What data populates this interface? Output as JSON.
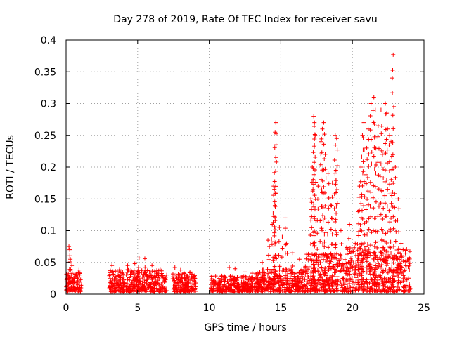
{
  "colors": {
    "marker": "#ff0000",
    "grid": "#a0a0a0",
    "axis": "#000000"
  },
  "chart_data": {
    "type": "scatter",
    "title": "Day 278 of 2019, Rate Of TEC Index for receiver savu",
    "xlabel": "GPS time / hours",
    "ylabel": "ROTI / TECUs",
    "xlim": [
      0,
      25
    ],
    "ylim": [
      0,
      0.4
    ],
    "grid": true,
    "marker": "+",
    "x_ticks": [
      0,
      5,
      10,
      15,
      20,
      25
    ],
    "x_tick_labels": [
      "0",
      "5",
      "10",
      "15",
      "20",
      "25"
    ],
    "y_ticks": [
      0,
      0.05,
      0.1,
      0.15,
      0.2,
      0.25,
      0.3,
      0.35,
      0.4
    ],
    "y_tick_labels": [
      "0",
      "0.05",
      "0.1",
      "0.15",
      "0.2",
      "0.25",
      "0.3",
      "0.35",
      "0.4"
    ],
    "segments": [
      {
        "x_range": [
          0.0,
          1.05
        ],
        "base_max": 0.03,
        "outliers": [
          [
            0.2,
            0.075
          ],
          [
            0.25,
            0.07
          ],
          [
            0.3,
            0.055
          ],
          [
            0.4,
            0.045
          ],
          [
            0.9,
            0.038
          ]
        ]
      },
      {
        "x_range": [
          3.0,
          7.05
        ],
        "base_max": 0.035,
        "outliers": [
          [
            3.2,
            0.045
          ],
          [
            4.3,
            0.045
          ],
          [
            5.1,
            0.057
          ],
          [
            5.5,
            0.056
          ],
          [
            6.0,
            0.045
          ],
          [
            4.8,
            0.048
          ]
        ]
      },
      {
        "x_range": [
          7.45,
          9.1
        ],
        "base_max": 0.03,
        "outliers": [
          [
            7.6,
            0.042
          ],
          [
            8.0,
            0.038
          ],
          [
            8.7,
            0.035
          ]
        ]
      },
      {
        "x_range": [
          10.1,
          13.2
        ],
        "base_max": 0.025,
        "outliers": [
          [
            11.4,
            0.042
          ],
          [
            11.8,
            0.04
          ],
          [
            12.5,
            0.035
          ],
          [
            13.0,
            0.033
          ]
        ]
      },
      {
        "x_range": [
          13.2,
          16.7
        ],
        "base_max": 0.035,
        "outliers": [
          [
            13.7,
            0.05
          ],
          [
            14.1,
            0.085
          ],
          [
            14.2,
            0.075
          ],
          [
            14.4,
            0.11
          ],
          [
            14.5,
            0.17
          ],
          [
            14.55,
            0.165
          ],
          [
            14.6,
            0.255
          ],
          [
            14.65,
            0.27
          ],
          [
            14.9,
            0.105
          ],
          [
            15.1,
            0.09
          ],
          [
            15.3,
            0.12
          ],
          [
            15.4,
            0.08
          ],
          [
            15.8,
            0.065
          ],
          [
            16.3,
            0.055
          ]
        ]
      },
      {
        "x_range": [
          16.7,
          19.5
        ],
        "base_max": 0.06,
        "outliers": [
          [
            17.1,
            0.15
          ],
          [
            17.2,
            0.2
          ],
          [
            17.3,
            0.28
          ],
          [
            17.35,
            0.27
          ],
          [
            17.4,
            0.25
          ],
          [
            17.6,
            0.17
          ],
          [
            17.8,
            0.24
          ],
          [
            17.9,
            0.26
          ],
          [
            18.0,
            0.27
          ],
          [
            18.1,
            0.22
          ],
          [
            18.3,
            0.19
          ],
          [
            18.5,
            0.14
          ],
          [
            18.6,
            0.175
          ],
          [
            18.8,
            0.25
          ],
          [
            18.9,
            0.245
          ],
          [
            18.85,
            0.195
          ],
          [
            19.2,
            0.1
          ]
        ]
      },
      {
        "x_range": [
          19.5,
          24.05
        ],
        "base_max": 0.07,
        "outliers": [
          [
            19.8,
            0.11
          ],
          [
            20.2,
            0.08
          ],
          [
            20.4,
            0.13
          ],
          [
            20.5,
            0.17
          ],
          [
            20.6,
            0.2
          ],
          [
            20.7,
            0.25
          ],
          [
            20.8,
            0.27
          ],
          [
            21.0,
            0.23
          ],
          [
            21.1,
            0.26
          ],
          [
            21.3,
            0.3
          ],
          [
            21.5,
            0.31
          ],
          [
            21.6,
            0.29
          ],
          [
            21.8,
            0.265
          ],
          [
            22.0,
            0.29
          ],
          [
            22.1,
            0.22
          ],
          [
            22.3,
            0.3
          ],
          [
            22.4,
            0.285
          ],
          [
            22.6,
            0.25
          ],
          [
            22.7,
            0.24
          ],
          [
            22.85,
            0.377
          ],
          [
            23.0,
            0.2
          ],
          [
            23.2,
            0.15
          ],
          [
            23.4,
            0.08
          ],
          [
            23.6,
            0.06
          ]
        ]
      }
    ]
  }
}
